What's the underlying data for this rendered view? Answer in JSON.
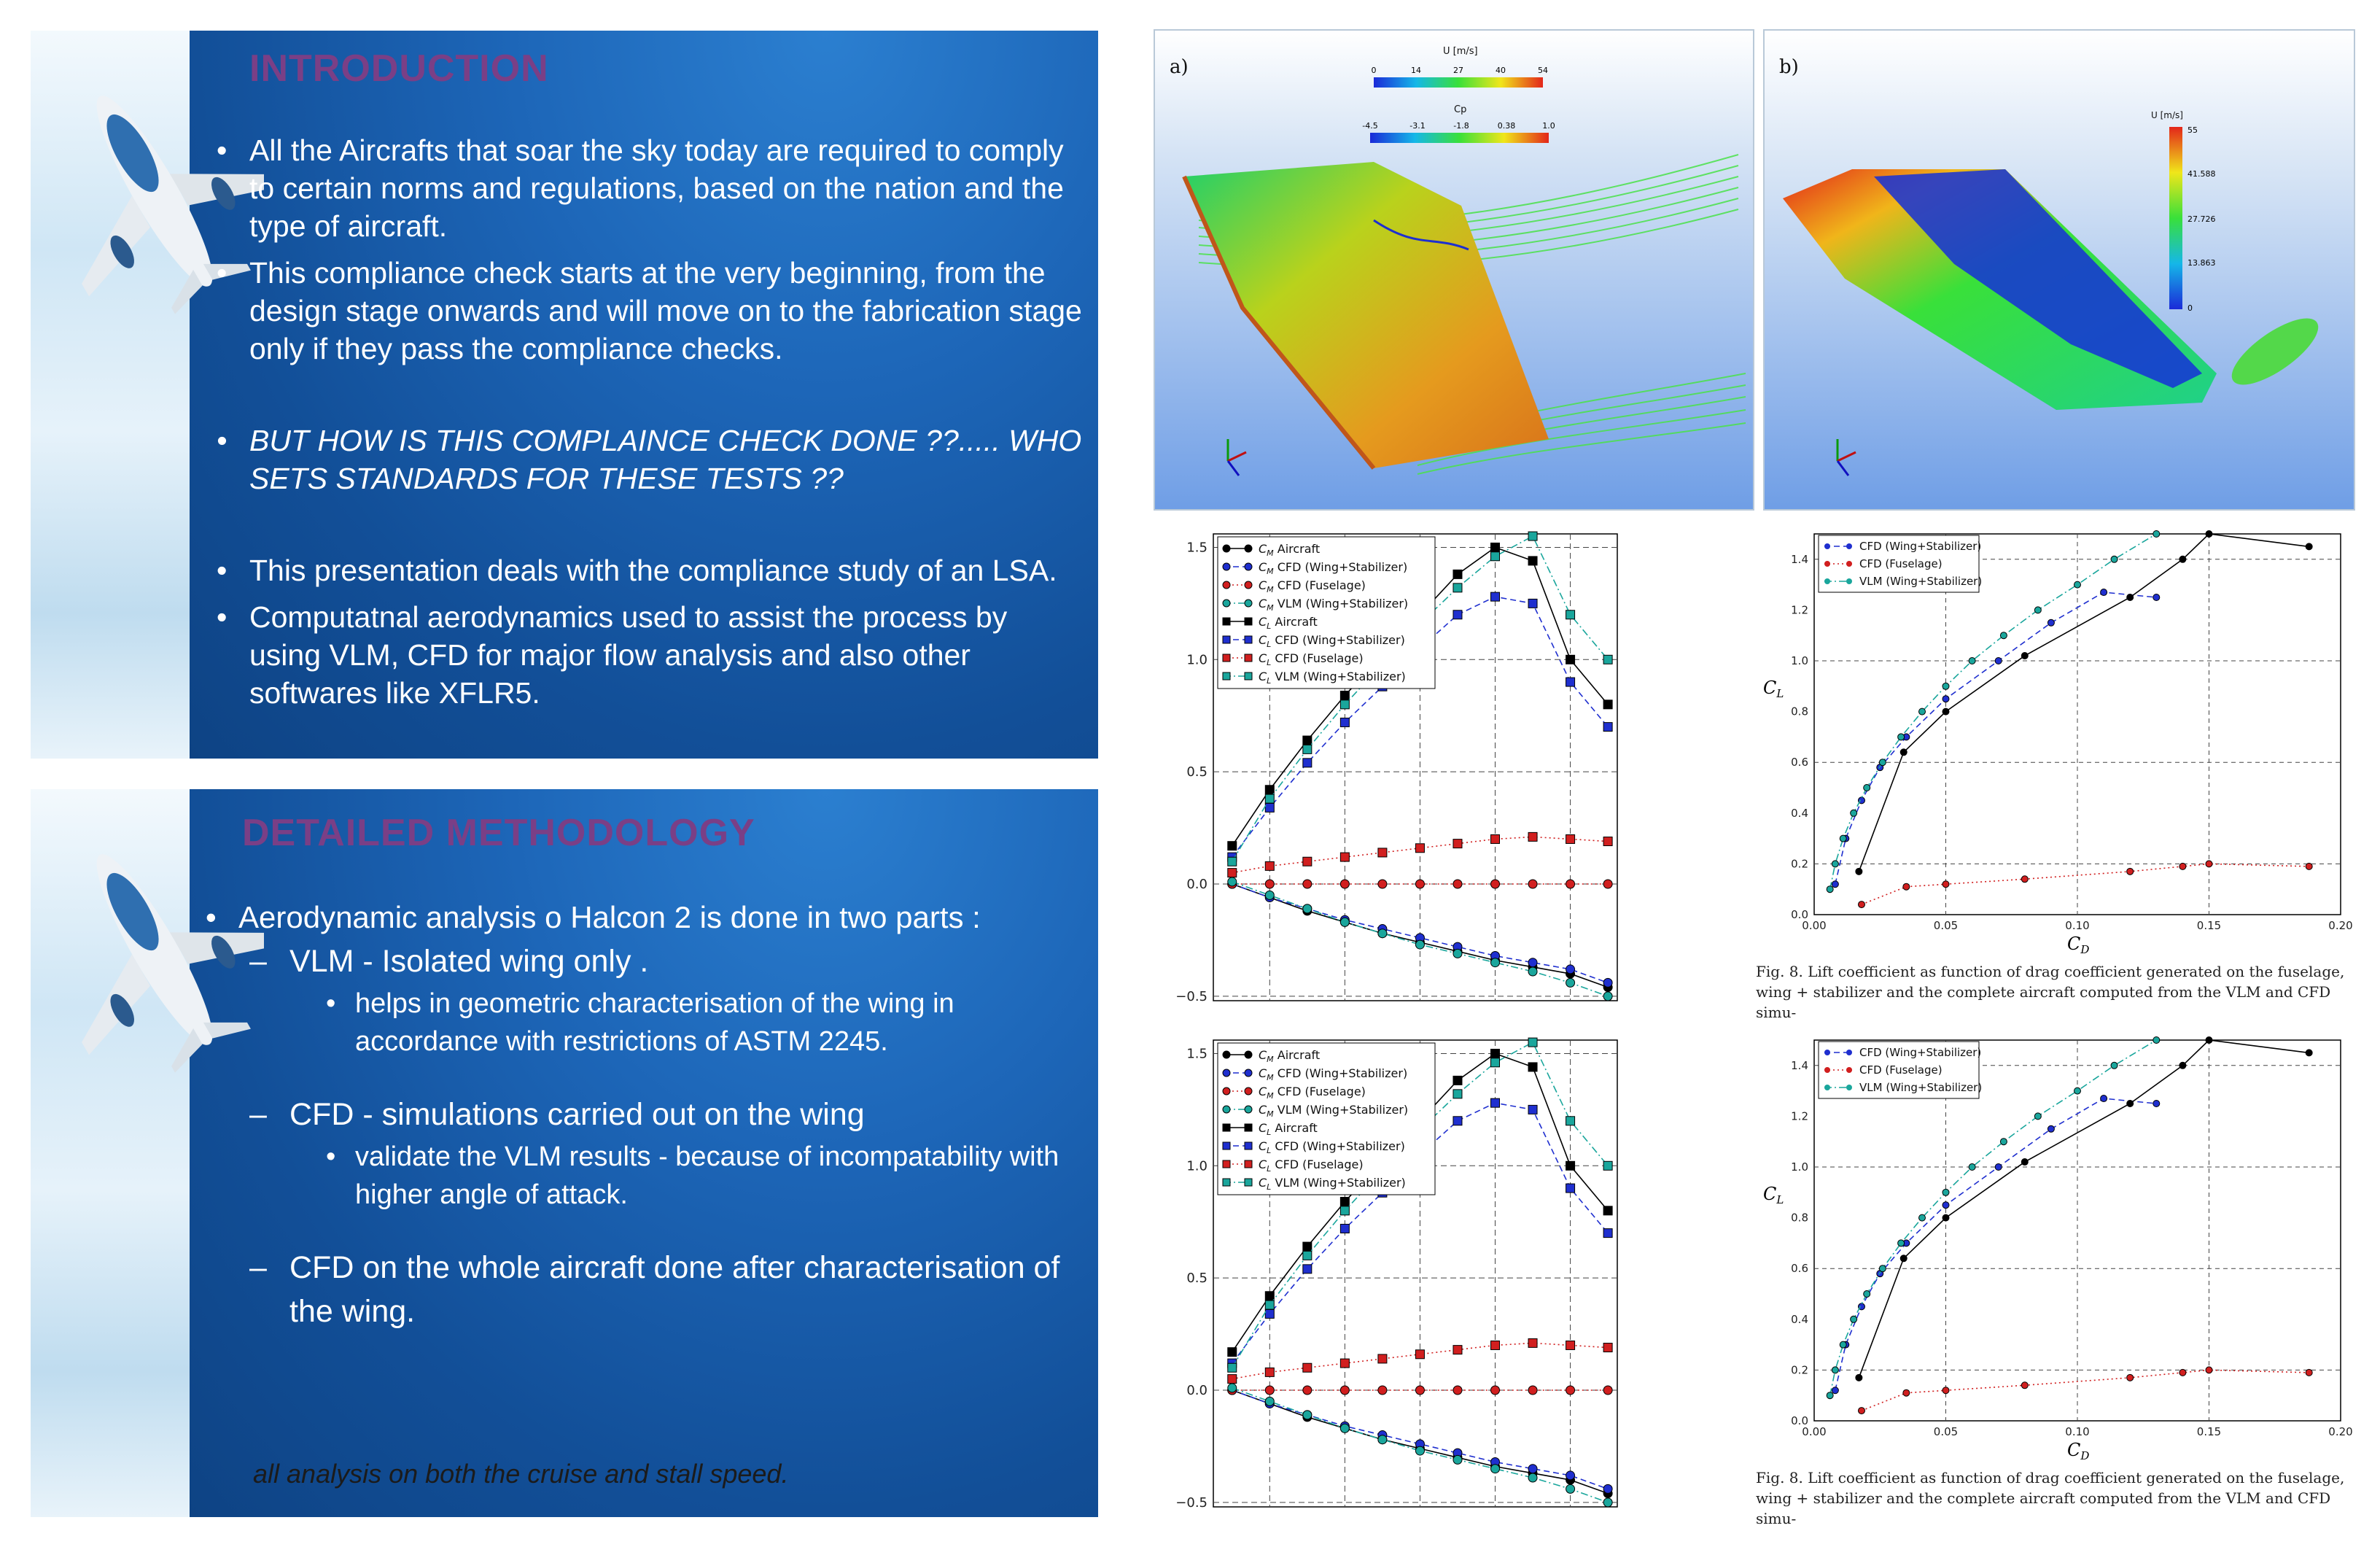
{
  "slides": [
    {
      "title": "INTRODUCTION",
      "bullets": [
        "All the Aircrafts that soar the sky today are required to comply to certain norms and regulations, based on the nation and the type of aircraft.",
        "This compliance check starts at the very beginning, from the design stage onwards and will move on to the fabrication stage only if they pass the compliance checks.",
        "BUT HOW IS THIS COMPLAINCE CHECK DONE ??..... WHO SETS STANDARDS FOR THESE TESTS ??",
        "This presentation deals with the compliance study of an LSA.",
        "Computatnal aerodynamics used to assist the process by using VLM, CFD for major flow analysis and also other softwares like XFLR5."
      ]
    },
    {
      "title": "DETAILED METHODOLOGY",
      "b1": "Aerodynamic analysis o Halcon 2 is done in two parts :",
      "d1": "VLM - Isolated wing only .",
      "s1": "helps in geometric characterisation of the wing in accordance with restrictions of ASTM 2245.",
      "d2": "CFD - simulations carried out on the wing",
      "s2": "validate the VLM results - because of incompatability with higher angle of attack.",
      "d3": "CFD on the whole aircraft done after characterisation of the wing.",
      "note": "all analysis on both the cruise and stall speed."
    }
  ],
  "cfd": {
    "a": {
      "panel": "a)",
      "u_label": "U [m/s]",
      "u_ticks": [
        "0",
        "14",
        "27",
        "40",
        "54"
      ],
      "cp_label": "Cp",
      "cp_ticks": [
        "-4.5",
        "-3.1",
        "-1.8",
        "0.38",
        "1.0"
      ]
    },
    "b": {
      "panel": "b)",
      "u_label": "U [m/s]",
      "u_ticks": [
        "55",
        "41.588",
        "27.726",
        "13.863",
        "0"
      ]
    }
  },
  "caption": {
    "line1": "Fig. 8.  Lift coefficient as function of drag coefficient generated on the fuselage,",
    "line2": "wing + stabilizer and the complete aircraft computed from the VLM and CFD simu-"
  },
  "chart_data": [
    {
      "type": "line",
      "x": [
        -4,
        -2,
        0,
        2,
        4,
        6,
        8,
        10,
        12,
        14,
        16
      ],
      "series": [
        {
          "name": "C_M Aircraft",
          "color": "#000000",
          "marker": "circle",
          "dash": "solid",
          "values": [
            0.0,
            -0.06,
            -0.12,
            -0.17,
            -0.22,
            -0.26,
            -0.3,
            -0.34,
            -0.37,
            -0.4,
            -0.46
          ]
        },
        {
          "name": "C_M CFD (Wing+Stabilizer)",
          "color": "#1f2fcf",
          "marker": "circle",
          "dash": "dashed",
          "values": [
            0.0,
            -0.06,
            -0.11,
            -0.16,
            -0.2,
            -0.24,
            -0.28,
            -0.32,
            -0.35,
            -0.38,
            -0.44
          ]
        },
        {
          "name": "C_M CFD (Fuselage)",
          "color": "#d11f1f",
          "marker": "circle",
          "dash": "dotted",
          "values": [
            0.0,
            0.0,
            0.0,
            0.0,
            0.0,
            0.0,
            0.0,
            0.0,
            0.0,
            0.0,
            0.0
          ]
        },
        {
          "name": "C_M VLM (Wing+Stabilizer)",
          "color": "#1aa69c",
          "marker": "circle",
          "dash": "dashdot",
          "values": [
            0.01,
            -0.05,
            -0.11,
            -0.17,
            -0.22,
            -0.27,
            -0.31,
            -0.35,
            -0.39,
            -0.44,
            -0.5
          ]
        },
        {
          "name": "C_L Aircraft",
          "color": "#000000",
          "marker": "square",
          "dash": "solid",
          "values": [
            0.17,
            0.42,
            0.64,
            0.84,
            1.02,
            1.2,
            1.38,
            1.5,
            1.44,
            1.0,
            0.8
          ]
        },
        {
          "name": "C_L CFD (Wing+Stabilizer)",
          "color": "#1f2fcf",
          "marker": "square",
          "dash": "dashed",
          "values": [
            0.12,
            0.34,
            0.54,
            0.72,
            0.88,
            1.05,
            1.2,
            1.28,
            1.25,
            0.9,
            0.7
          ]
        },
        {
          "name": "C_L CFD (Fuselage)",
          "color": "#d11f1f",
          "marker": "square",
          "dash": "dotted",
          "values": [
            0.05,
            0.08,
            0.1,
            0.12,
            0.14,
            0.16,
            0.18,
            0.2,
            0.21,
            0.2,
            0.19
          ]
        },
        {
          "name": "C_L VLM (Wing+Stabilizer)",
          "color": "#1aa69c",
          "marker": "square",
          "dash": "dashdot",
          "values": [
            0.1,
            0.38,
            0.6,
            0.8,
            0.98,
            1.16,
            1.32,
            1.46,
            1.55,
            1.2,
            1.0
          ]
        }
      ],
      "yticks": [
        "1.5",
        "1.0",
        "0.5",
        "0.0",
        "−0.5"
      ],
      "ylim": [
        -0.5,
        1.5
      ]
    },
    {
      "type": "line",
      "xlabel": "C_D",
      "ylabel": "C_L",
      "xlim": [
        0.0,
        0.2
      ],
      "ylim": [
        0.0,
        1.5
      ],
      "xticks": [
        "0.00",
        "0.05",
        "0.10",
        "0.15",
        "0.20"
      ],
      "yticks": [
        "0.0",
        "0.2",
        "0.4",
        "0.6",
        "0.8",
        "1.0",
        "1.2",
        "1.4"
      ],
      "series": [
        {
          "name": "CFD (Wing+Stabilizer)",
          "color": "#1f2fcf",
          "marker": "circle",
          "dash": "dashed",
          "x": [
            0.008,
            0.012,
            0.018,
            0.025,
            0.035,
            0.05,
            0.07,
            0.09,
            0.11,
            0.13
          ],
          "y": [
            0.12,
            0.3,
            0.45,
            0.58,
            0.7,
            0.85,
            1.0,
            1.15,
            1.27,
            1.25
          ]
        },
        {
          "name": "CFD (Fuselage)",
          "color": "#d11f1f",
          "marker": "circle",
          "dash": "dotted",
          "x": [
            0.018,
            0.035,
            0.05,
            0.08,
            0.12,
            0.14,
            0.15,
            0.188
          ],
          "y": [
            0.04,
            0.11,
            0.12,
            0.14,
            0.17,
            0.19,
            0.2,
            0.19
          ]
        },
        {
          "name": "VLM (Wing+Stabilizer)",
          "color": "#1aa69c",
          "marker": "circle",
          "dash": "dashdot",
          "x": [
            0.006,
            0.008,
            0.011,
            0.015,
            0.02,
            0.026,
            0.033,
            0.041,
            0.05,
            0.06,
            0.072,
            0.085,
            0.1,
            0.114,
            0.13
          ],
          "y": [
            0.1,
            0.2,
            0.3,
            0.4,
            0.5,
            0.6,
            0.7,
            0.8,
            0.9,
            1.0,
            1.1,
            1.2,
            1.3,
            1.4,
            1.5
          ]
        },
        {
          "name": "Aircraft",
          "color": "#000000",
          "marker": "circle",
          "dash": "solid",
          "x": [
            0.017,
            0.034,
            0.05,
            0.08,
            0.12,
            0.14,
            0.15,
            0.188
          ],
          "y": [
            0.17,
            0.64,
            0.8,
            1.02,
            1.25,
            1.4,
            1.5,
            1.45
          ]
        }
      ]
    }
  ]
}
